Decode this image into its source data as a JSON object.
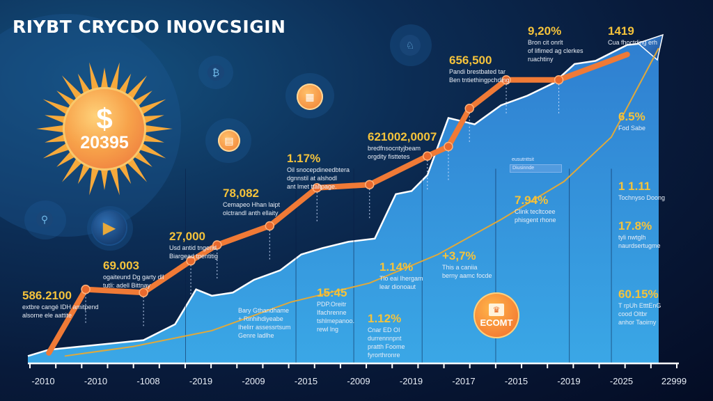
{
  "title": "RIYBT CRYCDO INOVCSIGIN",
  "hero": {
    "symbol": "$",
    "value": "20395"
  },
  "icons": [
    {
      "name": "chart-coin-icon",
      "glyph": "₿"
    },
    {
      "name": "orange-token-icon",
      "glyph": "▦"
    },
    {
      "name": "orange-token-icon-2",
      "glyph": "▤"
    },
    {
      "name": "lock-coin-icon",
      "glyph": "⚲"
    },
    {
      "name": "play-coin-icon",
      "glyph": "▶"
    },
    {
      "name": "user-coin-icon",
      "glyph": "♘"
    }
  ],
  "ecoin": {
    "logo": "♛",
    "label": "ECOMT"
  },
  "annotations": [
    {
      "value": "586.2100",
      "desc1": "extbre cangé IDH amitpend",
      "desc2": "alsorne ele aattite"
    },
    {
      "value": "69.003",
      "desc1": "ogaiteund Dg garty dll",
      "desc2": "tutli: adell Bittnay"
    },
    {
      "value": "27,000",
      "desc1": "Usd antid tngend",
      "desc2": "Biargead tpentitig"
    },
    {
      "value": "78,082",
      "desc1": "Cemapeo Hhan laipt",
      "desc2": "olctrandl anth ellaity"
    },
    {
      "value": "1.17%",
      "desc1": "Oil snocepdineedbtera",
      "desc2": "dgnnstil at alshodl",
      "desc3": "ant lmet ttaltpage."
    },
    {
      "value": "621002,0007",
      "desc1": "bredfnsocntyjbeam",
      "desc2": "orgdity fisttetes"
    },
    {
      "value": "656,500",
      "desc1": "Pandi brestbated tar",
      "desc2": "Ben tntiethingpchding"
    },
    {
      "value": "9,20%",
      "desc1": "Bron cit onrlt",
      "desc2": "of lifimed ag clerkes",
      "desc3": "ruachtiny"
    },
    {
      "value": "1419",
      "desc1": "Cua fhoctding erh"
    },
    {
      "value": "6.5%",
      "desc1": "Fod Sabe"
    },
    {
      "value": "1 1.11",
      "desc1": "Tochnyso Doong"
    },
    {
      "value": "17.8%",
      "desc1": "tyli nwtglh",
      "desc2": "naurdsertugme"
    },
    {
      "value": "60.15%",
      "desc1": "T rpUh EtttEnG",
      "desc2": "cood Oltbr",
      "desc3": "anhor Taoirny"
    },
    {
      "value": "7.94%",
      "desc1": "Clink tecltcoee",
      "desc2": "phisgent rhone"
    },
    {
      "value": "+3,7%",
      "desc1": "This a caniia",
      "desc2": "berny aamc focde"
    },
    {
      "value": "1.14%",
      "desc1": "Tlo eai Ihergam",
      "desc2": "lear dionoaut"
    },
    {
      "value": "15:45",
      "desc1": "PDP.Oreitr",
      "desc2": "Ifachrenne",
      "desc3": "tshlmepanoo.",
      "desc4": "rewl lng"
    },
    {
      "value": "1.12%",
      "desc1": "Cnar ED OI",
      "desc2": "durrennnpnt",
      "desc3": "pratth Foome",
      "desc4": "fyrorthronre"
    }
  ],
  "area_notes": [
    {
      "desc1": "Bary Gthandhame",
      "desc2": "+ Rinhihdiyeabe",
      "desc3": "Ihelirr assessrtsum",
      "desc4": "Genre ladlhe"
    }
  ],
  "callout": {
    "head": "eusutnttsit",
    "box": "Diusinnde"
  },
  "chart_data": {
    "type": "line",
    "title": "RIYBT CRYCDO INOVCSIGIN",
    "xlabel": "",
    "ylabel": "",
    "categories": [
      "-2010",
      "-2010",
      "-1008",
      "-2019",
      "-2009",
      "-2015",
      "-2009",
      "-2019",
      "-2017",
      "-2015",
      "-2019",
      "-2025",
      "22999"
    ],
    "ylim": [
      0,
      100
    ],
    "grid": false,
    "legend": "none",
    "series": [
      {
        "name": "price-line",
        "color": "#f07a36",
        "x": [
          0.4,
          1.1,
          2.2,
          3.1,
          3.6,
          4.6,
          5.5,
          6.5,
          7.6,
          8.0,
          8.4,
          9.1,
          10.1,
          11.4
        ],
        "values": [
          2,
          22,
          21,
          31,
          36,
          42,
          54,
          55,
          64,
          67,
          79,
          88,
          88,
          96
        ]
      },
      {
        "name": "market-area",
        "color": "#2f86d4",
        "outline": "#ffffff",
        "x": [
          0.0,
          0.4,
          1.0,
          1.6,
          2.2,
          2.8,
          3.2,
          3.5,
          3.9,
          4.3,
          4.8,
          5.2,
          5.6,
          6.1,
          6.6,
          7.0,
          7.3,
          7.6,
          8.0,
          8.5,
          9.0,
          9.5,
          10.0,
          10.4,
          10.8,
          11.4,
          12.0
        ],
        "values": [
          1,
          3,
          4,
          5,
          6,
          11,
          22,
          20,
          21,
          25,
          28,
          33,
          35,
          37,
          38,
          52,
          53,
          58,
          76,
          74,
          80,
          83,
          87,
          93,
          94,
          99,
          100
        ]
      },
      {
        "name": "trend-line",
        "color": "#e0a93b",
        "x": [
          0.7,
          2.0,
          3.5,
          5.0,
          6.5,
          7.8,
          9.0,
          10.2,
          11.1,
          12.0
        ],
        "values": [
          1,
          4,
          9,
          18,
          24,
          33,
          44,
          56,
          70,
          98
        ]
      }
    ]
  }
}
